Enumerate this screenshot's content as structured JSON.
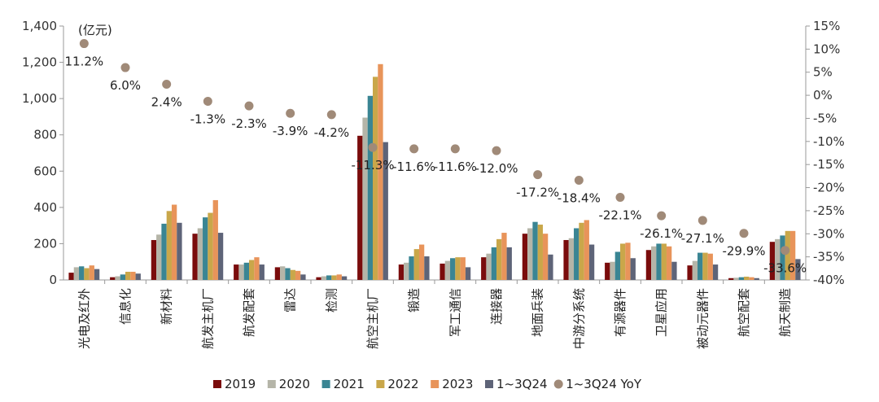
{
  "chart_data": {
    "type": "bar",
    "unit_label": "(亿元)",
    "categories": [
      "光电及红外",
      "信息化",
      "新材料",
      "航发主机厂",
      "航发配套",
      "雷达",
      "检测",
      "航空主机厂",
      "锻造",
      "军工通信",
      "连接器",
      "地面兵装",
      "中游分系统",
      "有源器件",
      "卫星应用",
      "被动元器件",
      "航空配套",
      "航天制造"
    ],
    "series": [
      {
        "name": "2019",
        "color": "#7a0c0c",
        "values": [
          40,
          15,
          220,
          255,
          85,
          70,
          15,
          795,
          85,
          90,
          125,
          255,
          220,
          95,
          165,
          80,
          10,
          210
        ]
      },
      {
        "name": "2020",
        "color": "#b5b5a8",
        "values": [
          70,
          20,
          250,
          285,
          85,
          75,
          20,
          895,
          95,
          105,
          145,
          285,
          230,
          100,
          185,
          105,
          12,
          225
        ]
      },
      {
        "name": "2021",
        "color": "#3a8593",
        "values": [
          75,
          30,
          310,
          345,
          95,
          65,
          25,
          1015,
          130,
          120,
          180,
          320,
          285,
          155,
          200,
          150,
          15,
          245
        ]
      },
      {
        "name": "2022",
        "color": "#c9a74a",
        "values": [
          65,
          45,
          380,
          370,
          110,
          55,
          25,
          1120,
          170,
          125,
          225,
          305,
          315,
          200,
          200,
          150,
          18,
          270
        ]
      },
      {
        "name": "2023",
        "color": "#e8945a",
        "values": [
          80,
          45,
          415,
          440,
          125,
          50,
          30,
          1190,
          195,
          125,
          260,
          255,
          330,
          205,
          185,
          145,
          15,
          270
        ]
      },
      {
        "name": "1~3Q24",
        "color": "#5e6478",
        "values": [
          60,
          35,
          315,
          260,
          85,
          30,
          20,
          760,
          130,
          70,
          180,
          140,
          195,
          120,
          100,
          85,
          10,
          115
        ]
      }
    ],
    "yoy": {
      "name": "1~3Q24 YoY",
      "color": "#a08a78",
      "values": [
        11.2,
        6.0,
        2.4,
        -1.3,
        -2.3,
        -3.9,
        -4.2,
        -11.3,
        -11.6,
        -11.6,
        -12.0,
        -17.2,
        -18.4,
        -22.1,
        -26.1,
        -27.1,
        -29.9,
        -33.6
      ]
    },
    "yoy_labels": [
      "11.2%",
      "6.0%",
      "2.4%",
      "-1.3%",
      "-2.3%",
      "-3.9%",
      "-4.2%",
      "-11.3%",
      "-11.6%",
      "-11.6%",
      "-12.0%",
      "-17.2%",
      "-18.4%",
      "-22.1%",
      "-26.1%",
      "-27.1%",
      "-29.9%",
      "-33.6%"
    ],
    "y_left": {
      "min": 0,
      "max": 1400,
      "step": 200,
      "tick_labels": [
        "0",
        "200",
        "400",
        "600",
        "800",
        "1,000",
        "1,200",
        "1,400"
      ]
    },
    "y_right": {
      "min": -40,
      "max": 15,
      "step": 5,
      "tick_labels": [
        "-40%",
        "-35%",
        "-30%",
        "-25%",
        "-20%",
        "-15%",
        "-10%",
        "-5%",
        "0%",
        "5%",
        "10%",
        "15%"
      ]
    },
    "legend": [
      "2019",
      "2020",
      "2021",
      "2022",
      "2023",
      "1~3Q24",
      "1~3Q24 YoY"
    ],
    "legend_position": "bottom"
  }
}
